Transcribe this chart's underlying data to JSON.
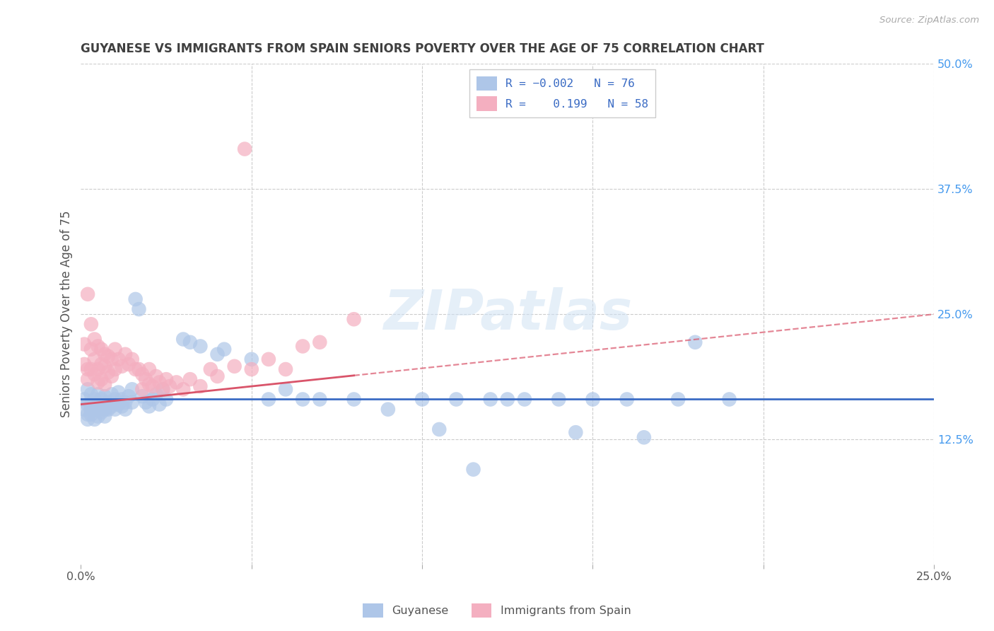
{
  "title": "GUYANESE VS IMMIGRANTS FROM SPAIN SENIORS POVERTY OVER THE AGE OF 75 CORRELATION CHART",
  "source": "Source: ZipAtlas.com",
  "ylabel": "Seniors Poverty Over the Age of 75",
  "xlim": [
    0.0,
    0.25
  ],
  "ylim": [
    0.0,
    0.5
  ],
  "xtick_vals": [
    0.0,
    0.05,
    0.1,
    0.15,
    0.2,
    0.25
  ],
  "xtick_labels": [
    "0.0%",
    "",
    "",
    "",
    "",
    "25.0%"
  ],
  "ytick_vals_right": [
    0.0,
    0.125,
    0.25,
    0.375,
    0.5
  ],
  "ytick_labels_right": [
    "",
    "12.5%",
    "25.0%",
    "37.5%",
    "50.0%"
  ],
  "guyanese_color": "#aec6e8",
  "spain_color": "#f4afc0",
  "trend_guyanese_color": "#3a6bc4",
  "trend_spain_color": "#d9546a",
  "watermark": "ZIPatlas",
  "background_color": "#ffffff",
  "grid_color": "#cccccc",
  "title_color": "#404040",
  "axis_label_color": "#555555",
  "right_tick_color": "#4499ee",
  "legend_text_color": "#3a6bc4",
  "guyanese_points": [
    [
      0.001,
      0.165
    ],
    [
      0.001,
      0.155
    ],
    [
      0.002,
      0.175
    ],
    [
      0.002,
      0.16
    ],
    [
      0.002,
      0.15
    ],
    [
      0.002,
      0.145
    ],
    [
      0.003,
      0.17
    ],
    [
      0.003,
      0.16
    ],
    [
      0.003,
      0.155
    ],
    [
      0.003,
      0.15
    ],
    [
      0.004,
      0.165
    ],
    [
      0.004,
      0.155
    ],
    [
      0.004,
      0.145
    ],
    [
      0.004,
      0.16
    ],
    [
      0.005,
      0.17
    ],
    [
      0.005,
      0.16
    ],
    [
      0.005,
      0.155
    ],
    [
      0.005,
      0.148
    ],
    [
      0.006,
      0.165
    ],
    [
      0.006,
      0.158
    ],
    [
      0.006,
      0.152
    ],
    [
      0.007,
      0.168
    ],
    [
      0.007,
      0.155
    ],
    [
      0.007,
      0.148
    ],
    [
      0.008,
      0.162
    ],
    [
      0.008,
      0.155
    ],
    [
      0.009,
      0.17
    ],
    [
      0.009,
      0.158
    ],
    [
      0.01,
      0.165
    ],
    [
      0.01,
      0.155
    ],
    [
      0.011,
      0.16
    ],
    [
      0.011,
      0.172
    ],
    [
      0.012,
      0.158
    ],
    [
      0.012,
      0.165
    ],
    [
      0.013,
      0.155
    ],
    [
      0.013,
      0.162
    ],
    [
      0.014,
      0.168
    ],
    [
      0.015,
      0.175
    ],
    [
      0.015,
      0.162
    ],
    [
      0.016,
      0.265
    ],
    [
      0.017,
      0.255
    ],
    [
      0.018,
      0.168
    ],
    [
      0.019,
      0.162
    ],
    [
      0.02,
      0.158
    ],
    [
      0.021,
      0.165
    ],
    [
      0.022,
      0.17
    ],
    [
      0.023,
      0.16
    ],
    [
      0.024,
      0.175
    ],
    [
      0.025,
      0.165
    ],
    [
      0.03,
      0.225
    ],
    [
      0.032,
      0.222
    ],
    [
      0.035,
      0.218
    ],
    [
      0.04,
      0.21
    ],
    [
      0.042,
      0.215
    ],
    [
      0.05,
      0.205
    ],
    [
      0.055,
      0.165
    ],
    [
      0.06,
      0.175
    ],
    [
      0.065,
      0.165
    ],
    [
      0.07,
      0.165
    ],
    [
      0.08,
      0.165
    ],
    [
      0.09,
      0.155
    ],
    [
      0.1,
      0.165
    ],
    [
      0.11,
      0.165
    ],
    [
      0.12,
      0.165
    ],
    [
      0.125,
      0.165
    ],
    [
      0.13,
      0.165
    ],
    [
      0.14,
      0.165
    ],
    [
      0.15,
      0.165
    ],
    [
      0.16,
      0.165
    ],
    [
      0.175,
      0.165
    ],
    [
      0.18,
      0.222
    ],
    [
      0.19,
      0.165
    ],
    [
      0.105,
      0.135
    ],
    [
      0.115,
      0.095
    ],
    [
      0.145,
      0.132
    ],
    [
      0.165,
      0.127
    ]
  ],
  "spain_points": [
    [
      0.001,
      0.22
    ],
    [
      0.001,
      0.2
    ],
    [
      0.002,
      0.27
    ],
    [
      0.002,
      0.195
    ],
    [
      0.002,
      0.185
    ],
    [
      0.003,
      0.24
    ],
    [
      0.003,
      0.215
    ],
    [
      0.003,
      0.195
    ],
    [
      0.004,
      0.225
    ],
    [
      0.004,
      0.205
    ],
    [
      0.004,
      0.19
    ],
    [
      0.005,
      0.218
    ],
    [
      0.005,
      0.195
    ],
    [
      0.005,
      0.182
    ],
    [
      0.006,
      0.215
    ],
    [
      0.006,
      0.2
    ],
    [
      0.006,
      0.185
    ],
    [
      0.007,
      0.21
    ],
    [
      0.007,
      0.198
    ],
    [
      0.007,
      0.18
    ],
    [
      0.008,
      0.208
    ],
    [
      0.008,
      0.192
    ],
    [
      0.009,
      0.205
    ],
    [
      0.009,
      0.188
    ],
    [
      0.01,
      0.215
    ],
    [
      0.01,
      0.195
    ],
    [
      0.011,
      0.205
    ],
    [
      0.012,
      0.198
    ],
    [
      0.013,
      0.21
    ],
    [
      0.014,
      0.2
    ],
    [
      0.015,
      0.205
    ],
    [
      0.016,
      0.195
    ],
    [
      0.017,
      0.195
    ],
    [
      0.018,
      0.19
    ],
    [
      0.018,
      0.175
    ],
    [
      0.019,
      0.185
    ],
    [
      0.02,
      0.195
    ],
    [
      0.02,
      0.18
    ],
    [
      0.021,
      0.178
    ],
    [
      0.022,
      0.188
    ],
    [
      0.023,
      0.182
    ],
    [
      0.024,
      0.175
    ],
    [
      0.025,
      0.185
    ],
    [
      0.026,
      0.178
    ],
    [
      0.028,
      0.182
    ],
    [
      0.03,
      0.175
    ],
    [
      0.032,
      0.185
    ],
    [
      0.035,
      0.178
    ],
    [
      0.038,
      0.195
    ],
    [
      0.04,
      0.188
    ],
    [
      0.045,
      0.198
    ],
    [
      0.05,
      0.195
    ],
    [
      0.048,
      0.415
    ],
    [
      0.055,
      0.205
    ],
    [
      0.06,
      0.195
    ],
    [
      0.065,
      0.218
    ],
    [
      0.07,
      0.222
    ],
    [
      0.08,
      0.245
    ]
  ],
  "trend_guy_x0": 0.0,
  "trend_guy_x1": 0.25,
  "trend_guy_y0": 0.165,
  "trend_guy_y1": 0.165,
  "trend_spain_x0": 0.0,
  "trend_spain_x1": 0.25,
  "trend_spain_y0": 0.16,
  "trend_spain_y1": 0.25
}
